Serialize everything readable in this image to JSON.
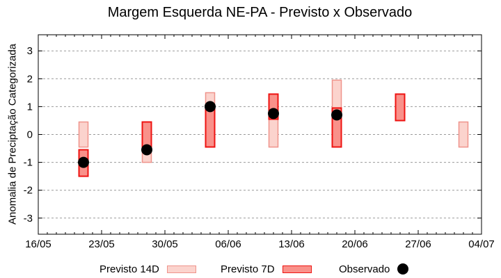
{
  "chart_data": {
    "type": "range-bar",
    "title": "Margem Esquerda NE-PA - Previsto x Observado",
    "ylabel": "Anomalia de Preciptação Categorizada",
    "x_axis": {
      "tick_labels": [
        "16/05",
        "23/05",
        "30/05",
        "06/06",
        "13/06",
        "20/06",
        "27/06",
        "04/07"
      ],
      "tick_days": [
        0,
        7,
        14,
        21,
        28,
        35,
        42,
        49
      ],
      "range_days": [
        0,
        49
      ],
      "minor_tick_every_days": 1
    },
    "y_axis": {
      "ticks": [
        -3,
        -2,
        -1,
        0,
        1,
        2,
        3
      ],
      "lim": [
        -3.58,
        3.58
      ],
      "grid": "dashed"
    },
    "series": [
      {
        "name": "Previsto 14D",
        "type": "range-bar",
        "fill": "#fbd3cd",
        "stroke": "#ef938b",
        "points": [
          {
            "date": "21/05",
            "day": 5,
            "low": -0.45,
            "high": 0.45
          },
          {
            "date": "28/05",
            "day": 12,
            "low": -1.0,
            "high": 0.45
          },
          {
            "date": "04/06",
            "day": 19,
            "low": -0.45,
            "high": 1.5
          },
          {
            "date": "11/06",
            "day": 26,
            "low": -0.45,
            "high": 0.55
          },
          {
            "date": "18/06",
            "day": 33,
            "low": -0.45,
            "high": 1.95
          },
          {
            "date": "02/07",
            "day": 47,
            "low": -0.45,
            "high": 0.45
          }
        ]
      },
      {
        "name": "Previsto 7D",
        "type": "range-bar",
        "fill": "#f9918a",
        "stroke": "#ee1311",
        "points": [
          {
            "date": "21/05",
            "day": 5,
            "low": -1.5,
            "high": -0.55
          },
          {
            "date": "28/05",
            "day": 12,
            "low": -0.6,
            "high": 0.45
          },
          {
            "date": "04/06",
            "day": 19,
            "low": -0.45,
            "high": 1.05
          },
          {
            "date": "11/06",
            "day": 26,
            "low": 0.55,
            "high": 1.45
          },
          {
            "date": "18/06",
            "day": 33,
            "low": -0.45,
            "high": 0.95
          },
          {
            "date": "25/06",
            "day": 40,
            "low": 0.5,
            "high": 1.45
          }
        ]
      },
      {
        "name": "Observado",
        "type": "scatter",
        "color": "#000000",
        "points": [
          {
            "date": "21/05",
            "day": 5,
            "value": -1.0
          },
          {
            "date": "28/05",
            "day": 12,
            "value": -0.55
          },
          {
            "date": "04/06",
            "day": 19,
            "value": 1.0
          },
          {
            "date": "11/06",
            "day": 26,
            "value": 0.75
          },
          {
            "date": "18/06",
            "day": 33,
            "value": 0.7
          }
        ]
      }
    ],
    "legend": {
      "position": "bottom",
      "items": [
        "Previsto 14D",
        "Previsto 7D",
        "Observado"
      ]
    },
    "colors": {
      "grid": "#999999",
      "axis": "#000000",
      "background": "#ffffff"
    }
  }
}
